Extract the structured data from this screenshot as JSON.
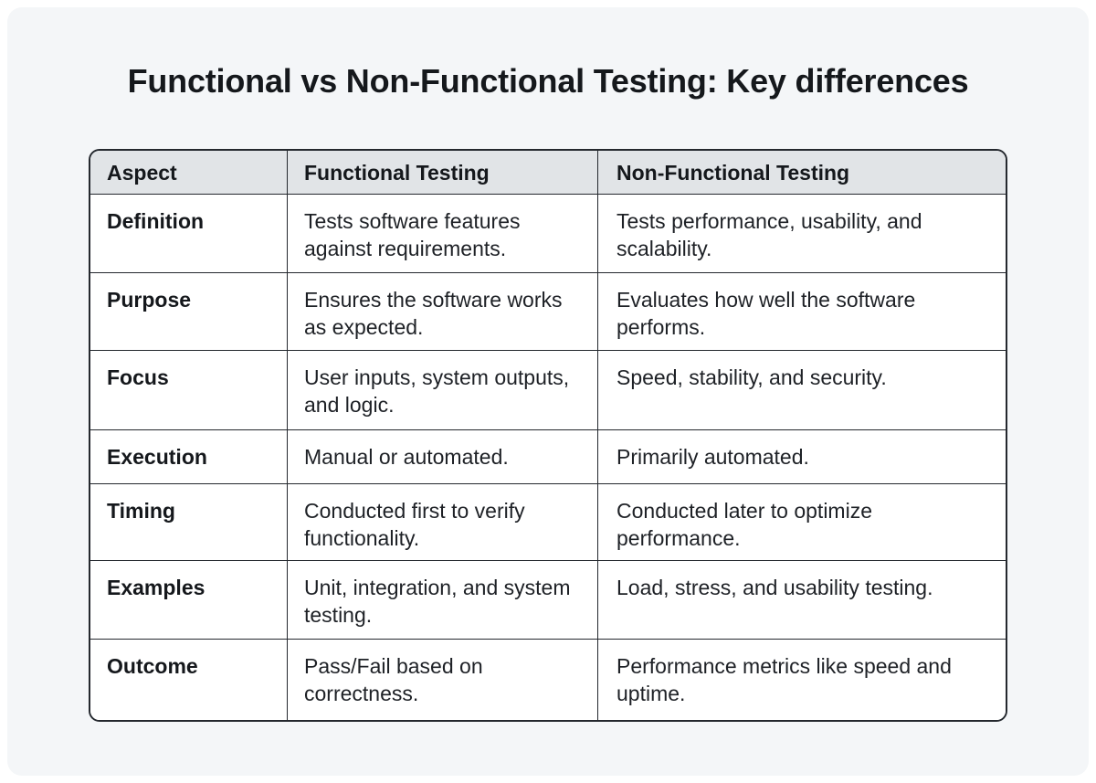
{
  "page": {
    "title": "Functional vs Non-Functional Testing: Key differences"
  },
  "table": {
    "headers": [
      "Aspect",
      "Functional Testing",
      "Non-Functional Testing"
    ],
    "rows": [
      [
        "Definition",
        "Tests software features against requirements.",
        "Tests performance, usability, and scalability."
      ],
      [
        "Purpose",
        "Ensures the software works as expected.",
        "Evaluates how well the software performs."
      ],
      [
        "Focus",
        "User inputs, system outputs, and logic.",
        "Speed, stability, and security."
      ],
      [
        "Execution",
        "Manual or automated.",
        "Primarily automated."
      ],
      [
        "Timing",
        "Conducted first to verify functionality.",
        "Conducted later to optimize performance."
      ],
      [
        "Examples",
        "Unit, integration, and system testing.",
        "Load, stress, and usability testing."
      ],
      [
        "Outcome",
        "Pass/Fail based on correctness.",
        "Performance metrics like speed and uptime."
      ]
    ]
  },
  "colors": {
    "page_background": "#f4f6f8",
    "header_background": "#e1e4e7",
    "cell_background": "#ffffff",
    "border": "#24282e",
    "text": "#1e2126",
    "heading_text": "#15181c"
  }
}
